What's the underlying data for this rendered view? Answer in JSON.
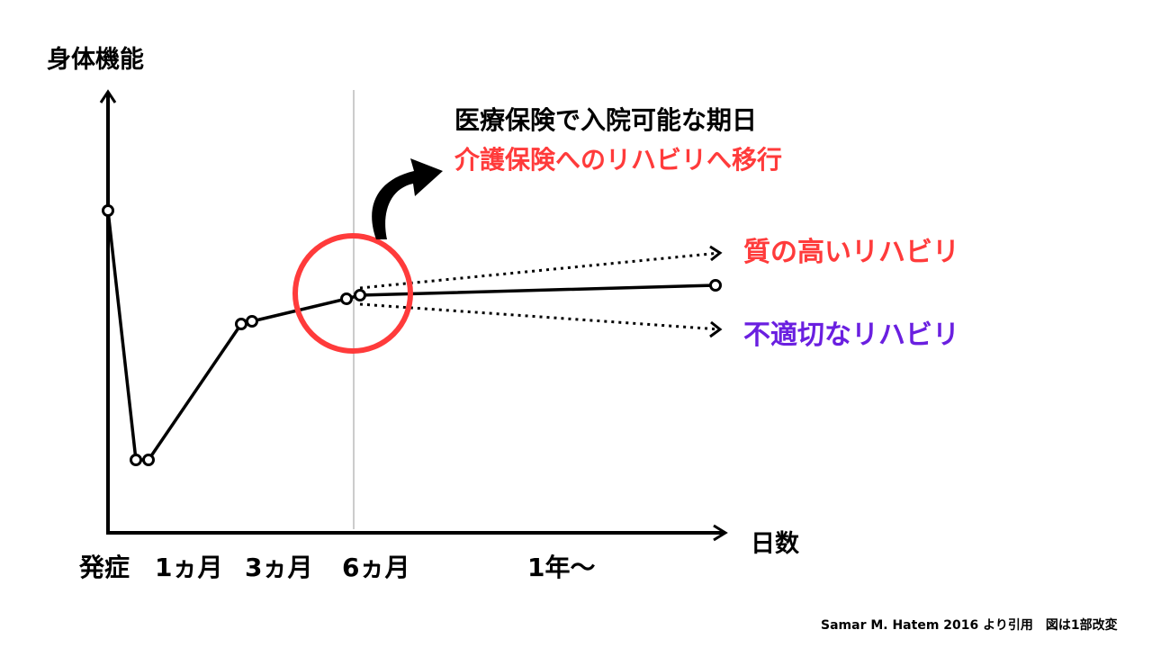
{
  "axes": {
    "y_label": "身体機能",
    "x_label": "日数",
    "x_ticks": [
      "発症",
      "1ヵ月",
      "3ヵ月",
      "6ヵ月",
      "1年〜"
    ]
  },
  "annotation": {
    "line1": "医療保険で入院可能な期日",
    "line2": "介護保険へのリハビリへ移行"
  },
  "branches": {
    "good_label": "質の高いリハビリ",
    "bad_label": "不適切なリハビリ"
  },
  "citation": "Samar M. Hatem 2016 より引用　図は1部改変",
  "colors": {
    "highlight_red": "#ff3b3b",
    "good_text": "#ff3b3b",
    "bad_text": "#6a1fe0",
    "line": "#000000"
  }
}
